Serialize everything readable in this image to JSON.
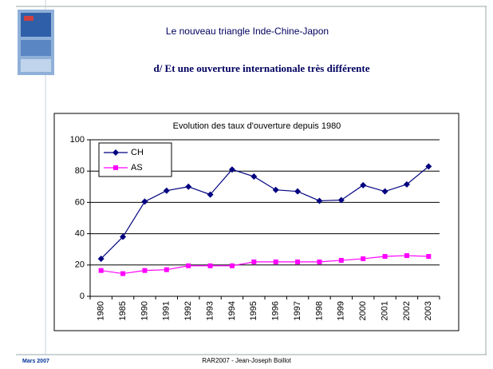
{
  "slide": {
    "title": "Le nouveau triangle Inde-Chine-Japon",
    "subtitle": "d/ Et une ouverture internationale très différente",
    "footer_left": "Mars 2007",
    "footer_center": "RAR2007 - Jean-Joseph Boillot"
  },
  "chart_data": {
    "type": "line",
    "title": "Evolution des taux d'ouverture depuis 1980",
    "categories": [
      "1980",
      "1985",
      "1990",
      "1991",
      "1992",
      "1993",
      "1994",
      "1995",
      "1996",
      "1997",
      "1998",
      "1999",
      "2000",
      "2001",
      "2002",
      "2003"
    ],
    "series": [
      {
        "name": "CH",
        "color": "#000080",
        "marker": "diamond",
        "values": [
          24,
          38,
          60.5,
          67.5,
          70,
          65,
          81,
          76.5,
          68,
          67,
          61,
          61.5,
          71,
          67,
          71.5,
          83
        ]
      },
      {
        "name": "AS",
        "color": "#ff00ff",
        "marker": "square",
        "values": [
          16.5,
          14.5,
          16.5,
          17,
          19.5,
          19.5,
          19.5,
          22,
          22,
          22,
          22,
          23,
          24,
          25.5,
          26,
          25.5
        ]
      }
    ],
    "ylim": [
      0,
      100
    ],
    "yticks": [
      0,
      20,
      40,
      60,
      80,
      100
    ],
    "grid": true,
    "legend": "top-left"
  }
}
